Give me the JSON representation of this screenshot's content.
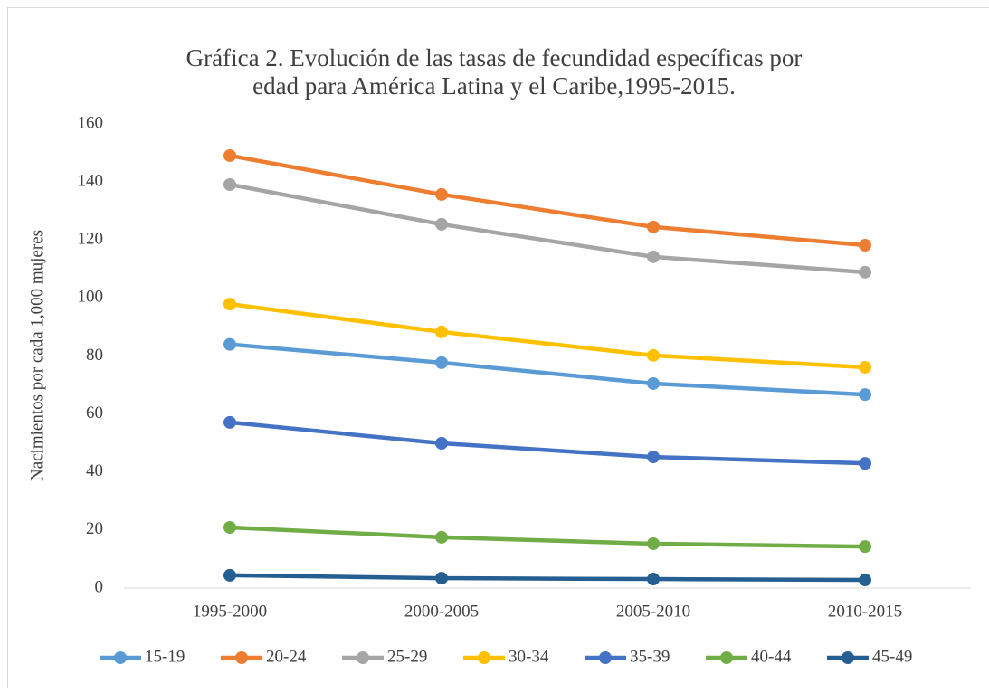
{
  "chart_data": {
    "type": "line",
    "title": [
      "Gráfica 2. Evolución de las tasas de fecundidad específicas por",
      "edad para América Latina y el Caribe,1995-2015."
    ],
    "y_label": "Nacimientos por cada 1,000 mujeres",
    "categories": [
      "1995-2000",
      "2000-2005",
      "2005-2010",
      "2010-2015"
    ],
    "series": [
      {
        "name": "15-19",
        "color": "#5b9bd5",
        "values": [
          84,
          77.7,
          70.5,
          66.7
        ]
      },
      {
        "name": "20-24",
        "color": "#ed7d31",
        "values": [
          149.1,
          135.7,
          124.5,
          118.2
        ]
      },
      {
        "name": "25-29",
        "color": "#a5a5a5",
        "values": [
          139.1,
          125.4,
          114.2,
          108.9
        ]
      },
      {
        "name": "30-34",
        "color": "#ffc000",
        "values": [
          97.9,
          88.3,
          80.2,
          76.1
        ]
      },
      {
        "name": "35-39",
        "color": "#4472c4",
        "values": [
          57.1,
          49.9,
          45.2,
          43
        ]
      },
      {
        "name": "40-44",
        "color": "#70ad47",
        "values": [
          20.9,
          17.5,
          15.3,
          14.3
        ]
      },
      {
        "name": "45-49",
        "color": "#255e91",
        "values": [
          4.4,
          3.4,
          3.1,
          2.8
        ]
      }
    ],
    "ylim": [
      0,
      160
    ],
    "yticks": [
      0,
      20,
      40,
      60,
      80,
      100,
      120,
      140,
      160
    ],
    "grid": false,
    "legend": "bottom"
  }
}
